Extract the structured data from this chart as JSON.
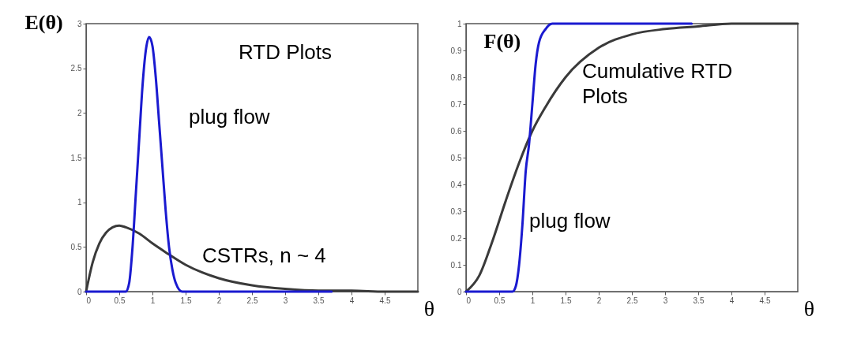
{
  "chart_data": [
    {
      "type": "line",
      "xlabel": "θ",
      "ylabel": "E(θ)",
      "xlim": [
        0,
        5
      ],
      "ylim": [
        0,
        3
      ],
      "xticks": [
        0,
        0.5,
        1,
        1.5,
        2,
        2.5,
        3,
        3.5,
        4,
        4.5
      ],
      "yticks": [
        0,
        0.5,
        1,
        1.5,
        2,
        2.5,
        3
      ],
      "annotations": [
        "RTD Plots"
      ],
      "series": [
        {
          "name": "CSTRs, n ~ 4",
          "color": "#3a3a3a",
          "x": [
            0,
            0.1,
            0.2,
            0.3,
            0.4,
            0.5,
            0.6,
            0.8,
            1,
            1.2,
            1.5,
            2,
            2.5,
            3,
            3.5,
            4,
            4.5,
            5
          ],
          "values": [
            0,
            0.33,
            0.54,
            0.66,
            0.72,
            0.74,
            0.72,
            0.65,
            0.54,
            0.44,
            0.3,
            0.15,
            0.07,
            0.03,
            0.01,
            0.01,
            0,
            0
          ]
        },
        {
          "name": "plug flow",
          "color": "#1a1ad0",
          "x": [
            0,
            0.6,
            0.65,
            0.7,
            0.75,
            0.8,
            0.85,
            0.9,
            0.95,
            1,
            1.05,
            1.1,
            1.15,
            1.2,
            1.25,
            1.3,
            1.35,
            1.45,
            3.7
          ],
          "values": [
            0,
            0,
            0.1,
            0.5,
            1.1,
            1.7,
            2.3,
            2.7,
            2.85,
            2.75,
            2.4,
            1.9,
            1.4,
            0.9,
            0.5,
            0.25,
            0.1,
            0,
            0
          ]
        }
      ]
    },
    {
      "type": "line",
      "xlabel": "θ",
      "ylabel": "F(θ)",
      "xlim": [
        0,
        5
      ],
      "ylim": [
        0,
        1
      ],
      "xticks": [
        0,
        0.5,
        1,
        1.5,
        2,
        2.5,
        3,
        3.5,
        4,
        4.5
      ],
      "yticks": [
        0,
        0.1,
        0.2,
        0.3,
        0.4,
        0.5,
        0.6,
        0.7,
        0.8,
        0.9,
        1
      ],
      "annotations": [
        "Cumulative RTD Plots"
      ],
      "series": [
        {
          "color": "#3a3a3a",
          "x": [
            0,
            0.2,
            0.4,
            0.6,
            0.8,
            1,
            1.2,
            1.5,
            2,
            2.5,
            3,
            3.5,
            4,
            5
          ],
          "values": [
            0,
            0.06,
            0.19,
            0.34,
            0.48,
            0.6,
            0.69,
            0.8,
            0.91,
            0.96,
            0.98,
            0.99,
            1,
            1
          ]
        },
        {
          "name": "plug flow",
          "color": "#1a1ad0",
          "x": [
            0,
            0.7,
            0.75,
            0.8,
            0.85,
            0.9,
            0.95,
            1,
            1.05,
            1.1,
            1.2,
            1.3,
            3.4
          ],
          "values": [
            0,
            0,
            0.02,
            0.1,
            0.25,
            0.45,
            0.55,
            0.7,
            0.85,
            0.93,
            0.98,
            1,
            1
          ]
        }
      ]
    }
  ]
}
